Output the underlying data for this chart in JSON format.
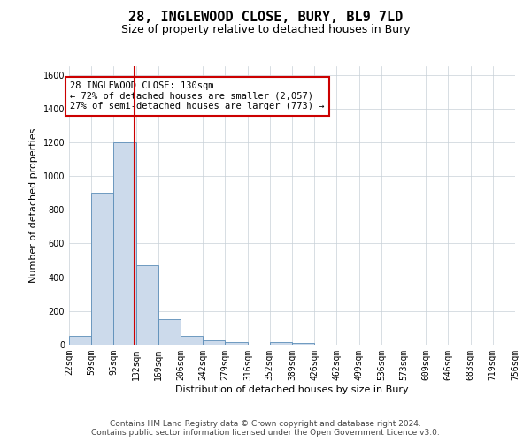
{
  "title": "28, INGLEWOOD CLOSE, BURY, BL9 7LD",
  "subtitle": "Size of property relative to detached houses in Bury",
  "xlabel": "Distribution of detached houses by size in Bury",
  "ylabel": "Number of detached properties",
  "bar_color": "#ccdaeb",
  "bar_edge_color": "#5b8db8",
  "vline_color": "#cc0000",
  "vline_x": 130,
  "bins": [
    22,
    59,
    95,
    132,
    169,
    206,
    242,
    279,
    316,
    352,
    389,
    426,
    462,
    499,
    536,
    573,
    609,
    646,
    683,
    719,
    756
  ],
  "bin_labels": [
    "22sqm",
    "59sqm",
    "95sqm",
    "132sqm",
    "169sqm",
    "206sqm",
    "242sqm",
    "279sqm",
    "316sqm",
    "352sqm",
    "389sqm",
    "426sqm",
    "462sqm",
    "499sqm",
    "536sqm",
    "573sqm",
    "609sqm",
    "646sqm",
    "683sqm",
    "719sqm",
    "756sqm"
  ],
  "values": [
    50,
    900,
    1200,
    470,
    150,
    50,
    25,
    15,
    0,
    15,
    10,
    0,
    0,
    0,
    0,
    0,
    0,
    0,
    0,
    0
  ],
  "ylim": [
    0,
    1650
  ],
  "yticks": [
    0,
    200,
    400,
    600,
    800,
    1000,
    1200,
    1400,
    1600
  ],
  "annotation_text": "28 INGLEWOOD CLOSE: 130sqm\n← 72% of detached houses are smaller (2,057)\n27% of semi-detached houses are larger (773) →",
  "annotation_box_color": "#ffffff",
  "annotation_box_edge": "#cc0000",
  "footer_line1": "Contains HM Land Registry data © Crown copyright and database right 2024.",
  "footer_line2": "Contains public sector information licensed under the Open Government Licence v3.0.",
  "background_color": "#ffffff",
  "grid_color": "#c8d0d8",
  "title_fontsize": 11,
  "subtitle_fontsize": 9,
  "axis_label_fontsize": 8,
  "tick_fontsize": 7,
  "annotation_fontsize": 7.5,
  "footer_fontsize": 6.5
}
